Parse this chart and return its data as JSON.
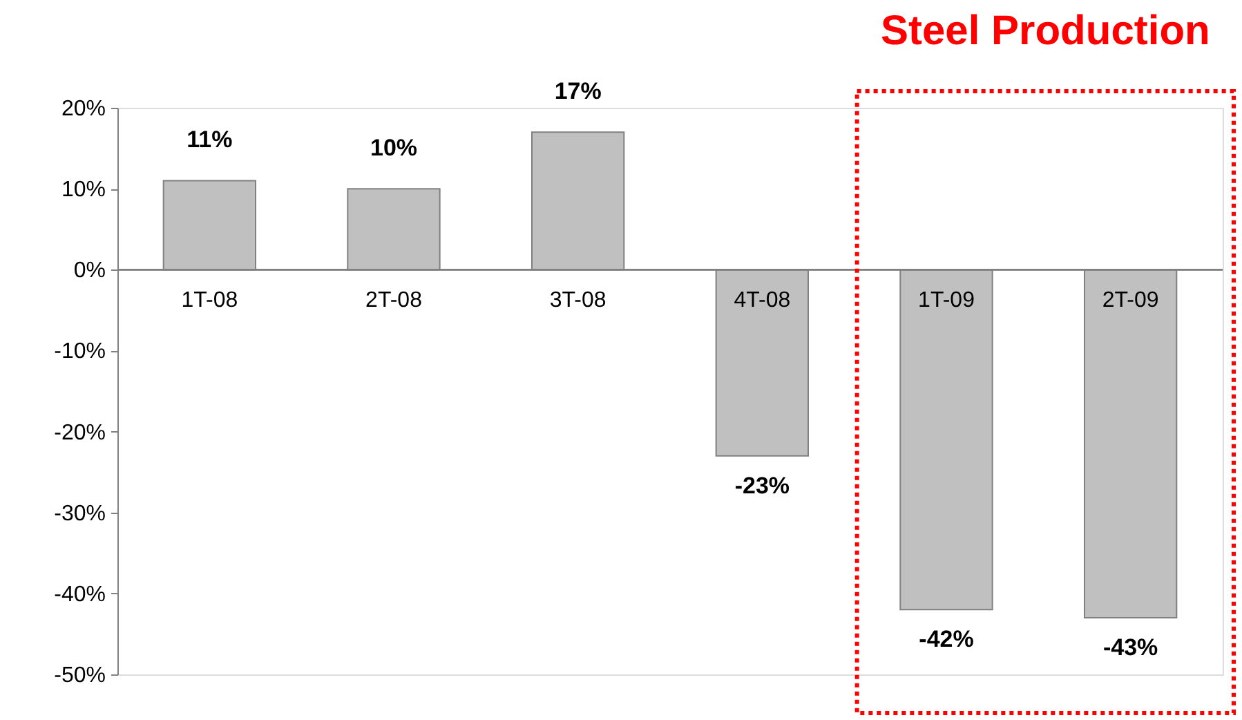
{
  "chart_data": {
    "type": "bar",
    "categories": [
      "1T-08",
      "2T-08",
      "3T-08",
      "4T-08",
      "1T-09",
      "2T-09"
    ],
    "values": [
      11,
      10,
      17,
      -23,
      -42,
      -43
    ],
    "value_labels": [
      "11%",
      "10%",
      "17%",
      "-23%",
      "-42%",
      "-43%"
    ],
    "color": "#c0c0c0",
    "ylim": [
      -50,
      20
    ],
    "yticks": [
      {
        "value": 20,
        "label": "20%"
      },
      {
        "value": 10,
        "label": "10%"
      },
      {
        "value": 0,
        "label": "0%"
      },
      {
        "value": -10,
        "label": "-10%"
      },
      {
        "value": -20,
        "label": "-20%"
      },
      {
        "value": -30,
        "label": "-30%"
      },
      {
        "value": -40,
        "label": "-40%"
      },
      {
        "value": -50,
        "label": "-50%"
      }
    ],
    "title": "Steel Production",
    "grid": false
  }
}
